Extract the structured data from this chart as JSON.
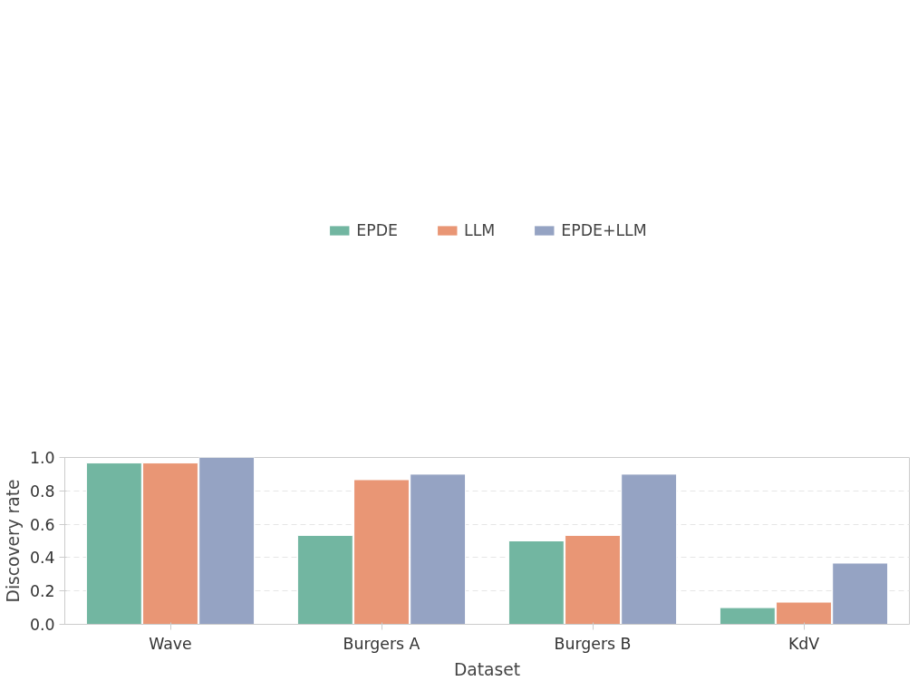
{
  "chart_data": {
    "type": "bar",
    "xlabel": "Dataset",
    "ylabel": "Discovery rate",
    "categories": [
      "Wave",
      "Burgers A",
      "Burgers B",
      "KdV"
    ],
    "series": [
      {
        "name": "EPDE",
        "color": "#72b6a1",
        "values": [
          0.967,
          0.533,
          0.5,
          0.1
        ]
      },
      {
        "name": "LLM",
        "color": "#e99675",
        "values": [
          0.967,
          0.867,
          0.533,
          0.133
        ]
      },
      {
        "name": "EPDE+LLM",
        "color": "#95a3c3",
        "values": [
          1.0,
          0.9,
          0.9,
          0.367
        ]
      }
    ],
    "ylim": [
      0,
      1
    ],
    "yticks": [
      {
        "value": 0,
        "label": "0.0"
      },
      0.2,
      0.4,
      0.6,
      0.8,
      {
        "value": 1,
        "label": "1.0"
      }
    ],
    "grid": "y",
    "legend": "top"
  }
}
